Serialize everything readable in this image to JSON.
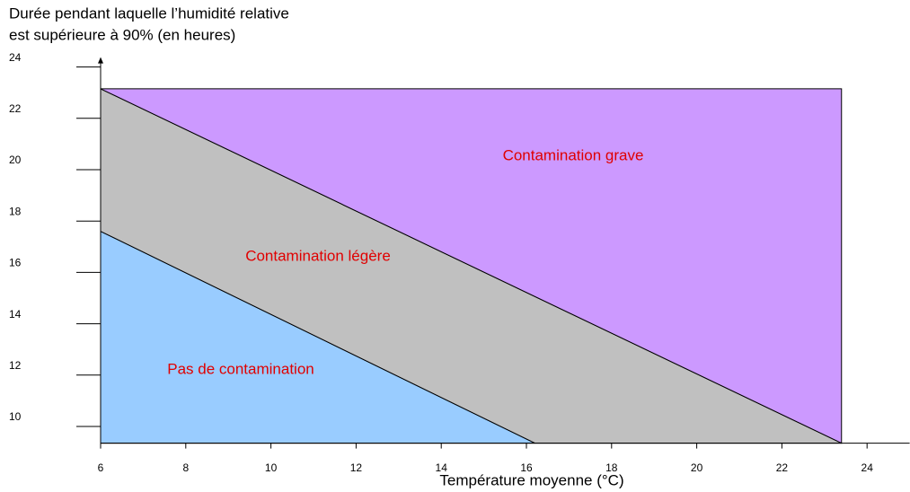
{
  "chart_data": {
    "type": "area-regions",
    "ylabel": [
      "Durée pendant laquelle l’humidité relative",
      "est supérieure à 90% (en heures)"
    ],
    "xlabel": "Température moyenne (°C)",
    "xlim": [
      6,
      25
    ],
    "xticks": [
      6,
      8,
      10,
      12,
      14,
      16,
      18,
      20,
      22,
      24
    ],
    "ylim": [
      9.35,
      24.35
    ],
    "yticks": [
      10,
      12,
      14,
      16,
      18,
      20,
      22,
      24
    ],
    "series": [
      {
        "name": "Pas de contamination",
        "color": "#99ccff",
        "x": [
          6,
          6,
          16.2
        ],
        "y": [
          9.35,
          17.6,
          9.35
        ]
      },
      {
        "name": "Contamination légère",
        "color": "#c0c0c0",
        "x": [
          6,
          6,
          23.4,
          16.2
        ],
        "y": [
          17.6,
          23.15,
          9.35,
          9.35
        ]
      },
      {
        "name": "Contamination grave",
        "color": "#cc99ff",
        "x": [
          6,
          23.4,
          23.4
        ],
        "y": [
          23.15,
          23.15,
          9.35
        ]
      }
    ]
  }
}
